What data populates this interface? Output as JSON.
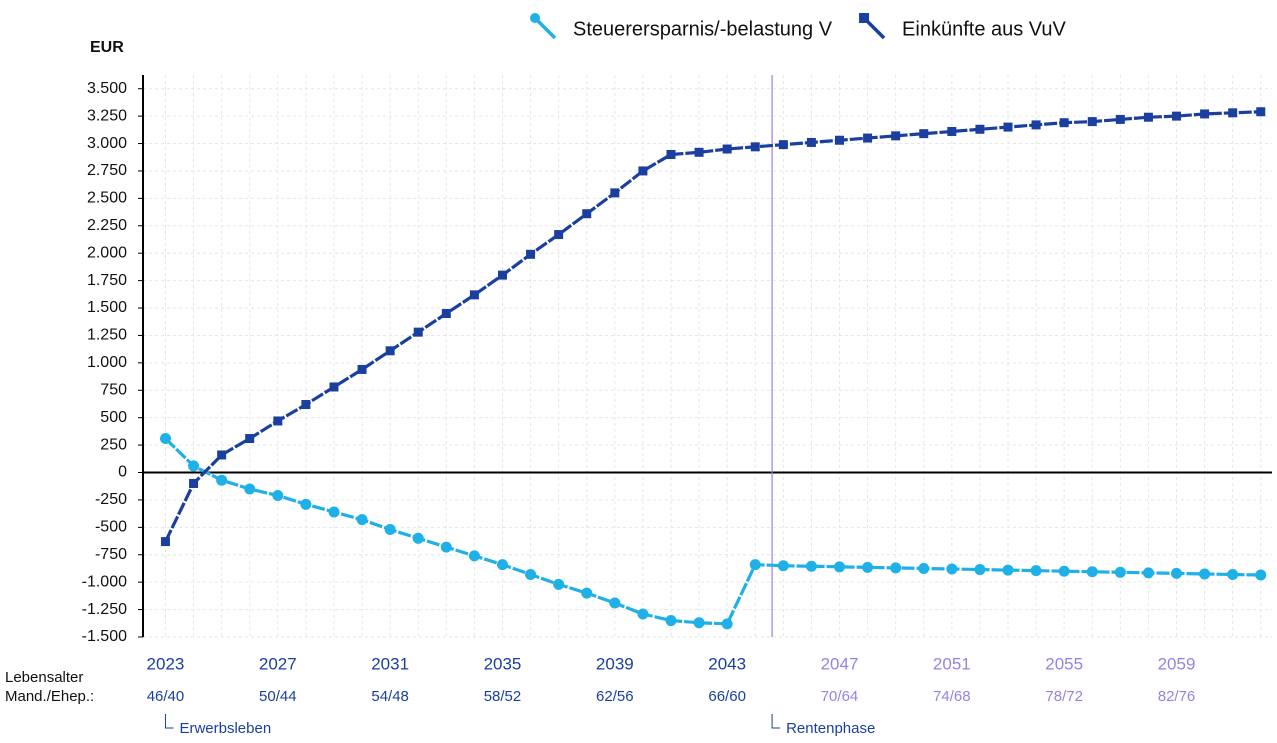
{
  "chart_data": {
    "type": "line",
    "y_unit_label": "EUR",
    "x": [
      2023,
      2024,
      2025,
      2026,
      2027,
      2028,
      2029,
      2030,
      2031,
      2032,
      2033,
      2034,
      2035,
      2036,
      2037,
      2038,
      2039,
      2040,
      2041,
      2042,
      2043,
      2044,
      2045,
      2046,
      2047,
      2048,
      2049,
      2050,
      2051,
      2052,
      2053,
      2054,
      2055,
      2056,
      2057,
      2058,
      2059,
      2060,
      2061,
      2062
    ],
    "series": [
      {
        "name": "Steuerersparnis/-belastung V",
        "color": "#1fb0e8",
        "marker": "circle",
        "values": [
          310,
          60,
          -70,
          -150,
          -210,
          -290,
          -360,
          -430,
          -520,
          -600,
          -680,
          -760,
          -840,
          -930,
          -1020,
          -1100,
          -1190,
          -1290,
          -1350,
          -1370,
          -1380,
          -840,
          -850,
          -855,
          -860,
          -865,
          -870,
          -875,
          -880,
          -885,
          -890,
          -895,
          -900,
          -905,
          -910,
          -915,
          -920,
          -925,
          -930,
          -935
        ]
      },
      {
        "name": "Einkünfte aus VuV",
        "color": "#1a3f9f",
        "marker": "square",
        "values": [
          -630,
          -100,
          160,
          310,
          470,
          620,
          780,
          940,
          1110,
          1280,
          1450,
          1620,
          1800,
          1990,
          2170,
          2360,
          2550,
          2750,
          2900,
          2920,
          2950,
          2970,
          2990,
          3010,
          3030,
          3050,
          3070,
          3090,
          3110,
          3130,
          3150,
          3170,
          3190,
          3200,
          3220,
          3240,
          3250,
          3270,
          3280,
          3290
        ]
      }
    ],
    "xlim": [
      2022.2,
      2062.4
    ],
    "ylim": [
      -1500,
      3625
    ],
    "xticks": [
      2023,
      2027,
      2031,
      2035,
      2039,
      2043,
      2047,
      2051,
      2055,
      2059
    ],
    "age_labels": [
      "46/40",
      "50/44",
      "54/48",
      "58/52",
      "62/56",
      "66/60",
      "70/64",
      "74/68",
      "78/72",
      "82/76"
    ],
    "row_labels": [
      "Lebensalter",
      "Mand./Ehep.:"
    ],
    "yticks": [
      {
        "value": -1500,
        "label": "-1.500"
      },
      {
        "value": -1250,
        "label": "-1.250"
      },
      {
        "value": -1000,
        "label": "-1.000"
      },
      -750,
      -500,
      -250,
      0,
      250,
      500,
      750,
      {
        "value": 1000,
        "label": "1.000"
      },
      {
        "value": 1250,
        "label": "1.250"
      },
      {
        "value": 1500,
        "label": "1.500"
      },
      {
        "value": 1750,
        "label": "1.750"
      },
      {
        "value": 2000,
        "label": "2.000"
      },
      {
        "value": 2250,
        "label": "2.250"
      },
      {
        "value": 2500,
        "label": "2.500"
      },
      {
        "value": 2750,
        "label": "2.750"
      },
      {
        "value": 3000,
        "label": "3.000"
      },
      {
        "value": 3250,
        "label": "3.250"
      },
      {
        "value": 3500,
        "label": "3.500"
      }
    ],
    "grid": true,
    "legend": "top",
    "retirement_x": 2044.6,
    "work_color": "#1a3f9f",
    "retirement_color": "#9b7fe6",
    "annotations": [
      {
        "text": "Erwerbsleben",
        "x": 2023
      },
      {
        "text": "Rentenphase",
        "x": 2044.6
      }
    ]
  }
}
